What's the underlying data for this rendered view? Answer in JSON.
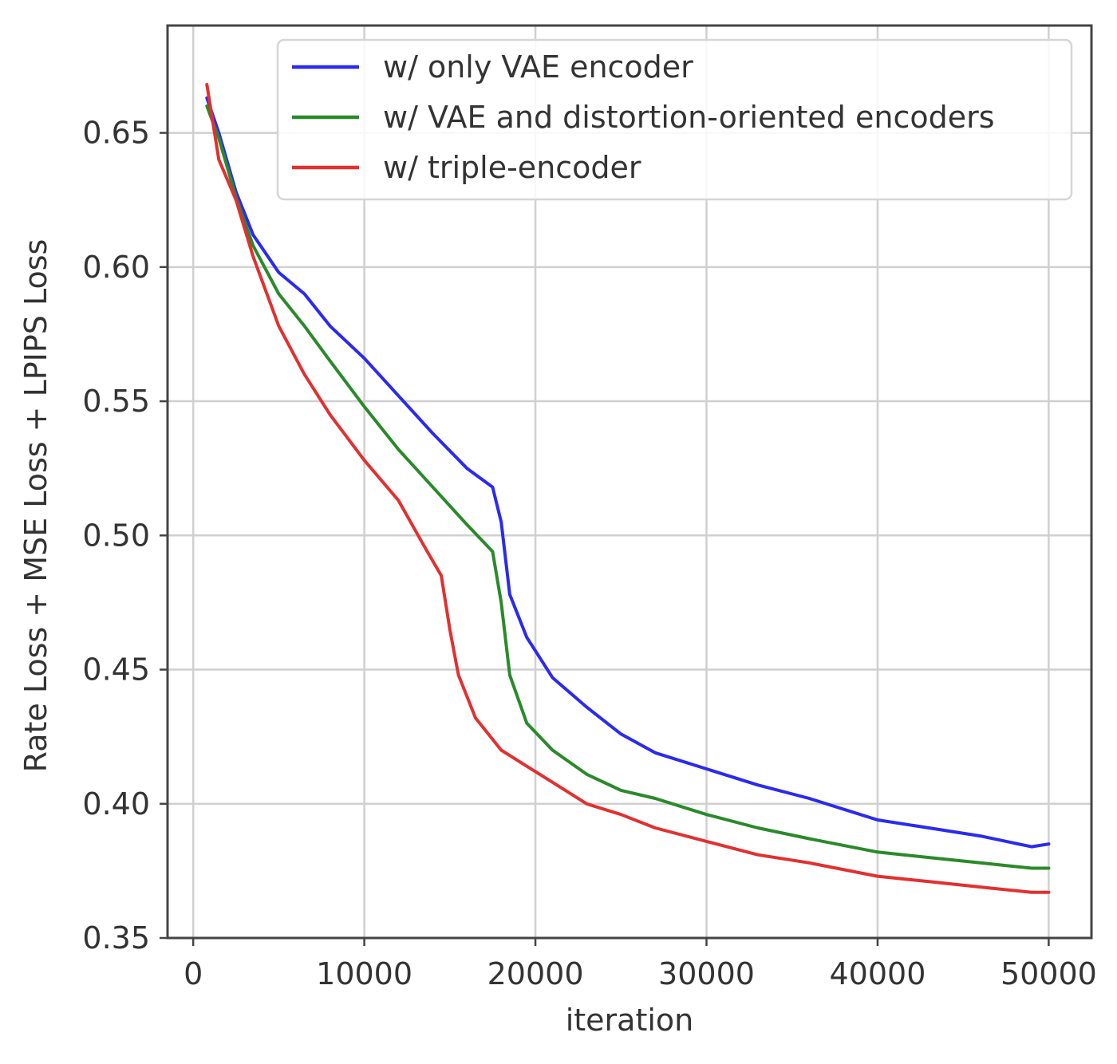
{
  "chart_data": {
    "type": "line",
    "title": "",
    "xlabel": "iteration",
    "ylabel": "Rate Loss + MSE Loss + LPIPS Loss",
    "xlim": [
      -1500,
      52500
    ],
    "ylim": [
      0.35,
      0.69
    ],
    "xticks": [
      0,
      10000,
      20000,
      30000,
      40000,
      50000
    ],
    "xtick_labels": [
      "0",
      "10000",
      "20000",
      "30000",
      "40000",
      "50000"
    ],
    "yticks": [
      0.35,
      0.4,
      0.45,
      0.5,
      0.55,
      0.6,
      0.65
    ],
    "ytick_labels": [
      "0.35",
      "0.40",
      "0.45",
      "0.50",
      "0.55",
      "0.60",
      "0.65"
    ],
    "grid": true,
    "legend_position": "top-right",
    "series": [
      {
        "name": "w/ only VAE encoder",
        "color": "#2a2af0",
        "x": [
          800,
          1500,
          2500,
          3500,
          5000,
          6500,
          8000,
          10000,
          12000,
          14000,
          16000,
          17500,
          18000,
          18500,
          19500,
          21000,
          23000,
          25000,
          27000,
          30000,
          33000,
          36000,
          40000,
          43000,
          46000,
          49000,
          50000
        ],
        "y": [
          0.663,
          0.65,
          0.628,
          0.612,
          0.598,
          0.59,
          0.578,
          0.566,
          0.552,
          0.538,
          0.525,
          0.518,
          0.505,
          0.478,
          0.462,
          0.447,
          0.436,
          0.426,
          0.419,
          0.413,
          0.407,
          0.402,
          0.394,
          0.391,
          0.388,
          0.384,
          0.385
        ]
      },
      {
        "name": "w/ VAE and distortion-oriented encoders",
        "color": "#2a8a2a",
        "x": [
          800,
          1500,
          2500,
          3500,
          5000,
          6500,
          8000,
          10000,
          12000,
          14000,
          16000,
          17500,
          18000,
          18500,
          19500,
          21000,
          23000,
          25000,
          27000,
          30000,
          33000,
          36000,
          40000,
          43000,
          46000,
          49000,
          50000
        ],
        "y": [
          0.66,
          0.648,
          0.626,
          0.608,
          0.59,
          0.578,
          0.565,
          0.548,
          0.532,
          0.518,
          0.504,
          0.494,
          0.475,
          0.448,
          0.43,
          0.42,
          0.411,
          0.405,
          0.402,
          0.396,
          0.391,
          0.387,
          0.382,
          0.38,
          0.378,
          0.376,
          0.376
        ]
      },
      {
        "name": "w/ triple-encoder",
        "color": "#e23030",
        "x": [
          800,
          1500,
          2500,
          3500,
          5000,
          6500,
          8000,
          10000,
          12000,
          13500,
          14500,
          15000,
          15500,
          16500,
          18000,
          19500,
          21000,
          23000,
          25000,
          27000,
          30000,
          33000,
          36000,
          40000,
          43000,
          46000,
          49000,
          50000
        ],
        "y": [
          0.668,
          0.64,
          0.625,
          0.604,
          0.578,
          0.56,
          0.545,
          0.528,
          0.513,
          0.496,
          0.485,
          0.465,
          0.448,
          0.432,
          0.42,
          0.414,
          0.408,
          0.4,
          0.396,
          0.391,
          0.386,
          0.381,
          0.378,
          0.373,
          0.371,
          0.369,
          0.367,
          0.367
        ]
      }
    ]
  }
}
